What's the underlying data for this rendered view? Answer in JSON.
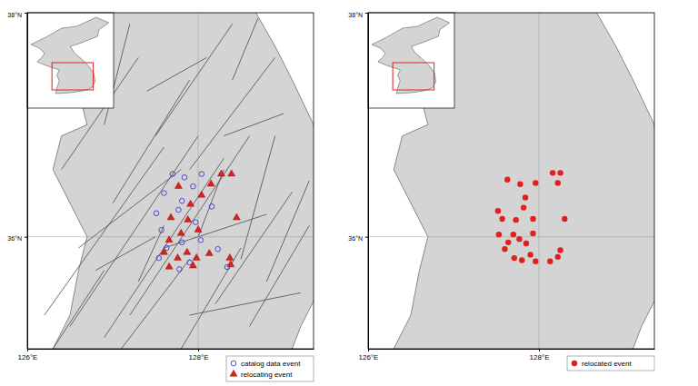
{
  "chart_data": [
    {
      "type": "map",
      "xlim": [
        126,
        129.35
      ],
      "ylim": [
        35,
        38
      ],
      "xticks": [
        {
          "value": 126,
          "label": "126°E"
        },
        {
          "value": 128,
          "label": "128°E"
        }
      ],
      "yticks": [
        {
          "value": 36,
          "label": "36°N"
        },
        {
          "value": 38,
          "label": "38°N"
        }
      ],
      "grid": true,
      "legend": "bottom-right",
      "series": [
        {
          "name": "catalog data event",
          "color": "#3a3ad6",
          "marker": "open-circle",
          "x": [
            127.7,
            127.84,
            128.04,
            127.6,
            127.81,
            128.16,
            127.51,
            127.77,
            127.97,
            127.57,
            127.81,
            127.63,
            128.03,
            127.54,
            127.78,
            127.9,
            128.23,
            128.34,
            127.94
          ],
          "values": [
            36.56,
            36.53,
            36.56,
            36.39,
            36.32,
            36.27,
            36.21,
            36.24,
            36.13,
            36.06,
            35.95,
            35.9,
            35.97,
            35.81,
            35.71,
            35.77,
            35.89,
            35.73,
            36.45
          ]
        },
        {
          "name": "relocating event",
          "color": "#e0201e",
          "marker": "triangle",
          "x": [
            128.27,
            128.39,
            128.15,
            127.77,
            128.04,
            127.91,
            127.68,
            127.88,
            128.45,
            128.0,
            127.8,
            127.66,
            127.6,
            127.87,
            127.66,
            127.94,
            127.98,
            128.13,
            128.37,
            128.38,
            127.76
          ],
          "values": [
            36.56,
            36.56,
            36.47,
            36.45,
            36.37,
            36.29,
            36.17,
            36.15,
            36.17,
            36.06,
            36.03,
            35.97,
            35.86,
            35.86,
            35.73,
            35.74,
            35.81,
            35.85,
            35.81,
            35.75,
            35.81
          ]
        }
      ],
      "coastline": {
        "lon": [
          125.9,
          128.6,
          128.9,
          129.1,
          129.35,
          129.4,
          129.45,
          129.55,
          129.4,
          129.2,
          129.1,
          128.5,
          127.5,
          126.5,
          126.2,
          126.3,
          126.5,
          126.6,
          126.7,
          126.5,
          126.3,
          126.4,
          126.7,
          126.6,
          126.5,
          125.9
        ],
        "lat": [
          38.1,
          38.1,
          37.7,
          37.4,
          37.0,
          36.6,
          36.1,
          35.9,
          35.5,
          35.2,
          35.0,
          34.9,
          34.8,
          34.5,
          34.6,
          35.0,
          35.3,
          35.7,
          36.0,
          36.3,
          36.6,
          36.9,
          37.0,
          37.3,
          37.6,
          37.7
        ]
      },
      "faults": [
        {
          "lon": [
            126.2,
            127.6
          ],
          "lat": [
            35.3,
            36.8
          ]
        },
        {
          "lon": [
            126.5,
            128.0
          ],
          "lat": [
            35.2,
            36.9
          ]
        },
        {
          "lon": [
            126.9,
            128.3
          ],
          "lat": [
            35.1,
            36.7
          ]
        },
        {
          "lon": [
            127.2,
            128.6
          ],
          "lat": [
            35.3,
            36.9
          ]
        },
        {
          "lon": [
            127.0,
            127.9
          ],
          "lat": [
            36.3,
            37.4
          ]
        },
        {
          "lon": [
            126.4,
            127.3
          ],
          "lat": [
            36.6,
            37.6
          ]
        },
        {
          "lon": [
            127.5,
            128.4
          ],
          "lat": [
            36.9,
            37.9
          ]
        },
        {
          "lon": [
            127.9,
            128.9
          ],
          "lat": [
            36.6,
            37.6
          ]
        },
        {
          "lon": [
            128.2,
            129.1
          ],
          "lat": [
            35.4,
            36.4
          ]
        },
        {
          "lon": [
            128.6,
            129.3
          ],
          "lat": [
            35.2,
            36.1
          ]
        },
        {
          "lon": [
            128.8,
            129.3
          ],
          "lat": [
            35.6,
            36.5
          ]
        },
        {
          "lon": [
            127.6,
            128.8
          ],
          "lat": [
            35.9,
            36.2
          ]
        },
        {
          "lon": [
            127.1,
            127.9
          ],
          "lat": [
            35.0,
            35.8
          ]
        },
        {
          "lon": [
            127.8,
            128.5
          ],
          "lat": [
            35.0,
            35.9
          ]
        },
        {
          "lon": [
            126.8,
            127.5
          ],
          "lat": [
            35.7,
            36.0
          ]
        },
        {
          "lon": [
            128.3,
            129.0
          ],
          "lat": [
            36.9,
            37.1
          ]
        },
        {
          "lon": [
            126.9,
            127.2
          ],
          "lat": [
            37.0,
            37.9
          ]
        },
        {
          "lon": [
            127.3,
            127.6
          ],
          "lat": [
            35.6,
            36.1
          ]
        },
        {
          "lon": [
            128.0,
            128.3
          ],
          "lat": [
            36.0,
            36.6
          ]
        },
        {
          "lon": [
            126.6,
            127.8
          ],
          "lat": [
            35.9,
            36.6
          ]
        },
        {
          "lon": [
            127.4,
            128.1
          ],
          "lat": [
            37.3,
            37.6
          ]
        },
        {
          "lon": [
            128.5,
            128.9
          ],
          "lat": [
            35.8,
            36.9
          ]
        },
        {
          "lon": [
            126.3,
            126.9
          ],
          "lat": [
            35.0,
            35.7
          ]
        },
        {
          "lon": [
            127.9,
            129.2
          ],
          "lat": [
            35.3,
            35.5
          ]
        },
        {
          "lon": [
            128.4,
            128.7
          ],
          "lat": [
            37.4,
            37.95
          ]
        }
      ],
      "inset": {
        "xlim": [
          124,
          131
        ],
        "ylim": [
          33,
          43.5
        ],
        "coastline": {
          "lon": [
            124.3,
            125.0,
            125.4,
            125.2,
            124.8,
            125.5,
            126.6,
            126.4,
            126.6,
            126.4,
            126.3,
            127.5,
            128.5,
            129.2,
            129.5,
            129.4,
            129.0,
            128.4,
            127.8,
            127.5,
            128.4,
            129.7,
            129.8,
            130.6,
            129.6,
            128.0,
            126.8,
            125.5
          ],
          "lat": [
            40.0,
            39.6,
            39.0,
            38.6,
            38.1,
            37.7,
            37.2,
            36.6,
            36.0,
            35.2,
            34.6,
            34.7,
            34.9,
            35.2,
            35.9,
            36.8,
            37.6,
            38.4,
            39.1,
            39.8,
            40.2,
            40.9,
            41.6,
            42.4,
            43.0,
            42.0,
            41.8,
            40.8
          ]
        }
      }
    },
    {
      "type": "map",
      "xlim": [
        126,
        129.35
      ],
      "ylim": [
        35,
        38
      ],
      "xticks": [
        {
          "value": 126,
          "label": "126°E"
        },
        {
          "value": 128,
          "label": "128°E"
        }
      ],
      "yticks": [
        {
          "value": 36,
          "label": "36°N"
        },
        {
          "value": 38,
          "label": "38°N"
        }
      ],
      "grid": true,
      "legend": "bottom-right",
      "series": [
        {
          "name": "relocated event",
          "color": "#e0201e",
          "marker": "circle",
          "x": [
            127.63,
            127.78,
            127.96,
            128.16,
            128.25,
            128.22,
            127.84,
            127.82,
            127.52,
            128.3,
            127.57,
            127.73,
            127.93,
            127.53,
            127.7,
            127.77,
            127.64,
            127.85,
            127.93,
            127.6,
            127.71,
            127.8,
            127.9,
            127.96,
            128.13,
            128.25,
            128.22
          ],
          "values": [
            36.51,
            36.47,
            36.48,
            36.57,
            36.57,
            36.48,
            36.35,
            36.26,
            36.23,
            36.16,
            36.16,
            36.15,
            36.16,
            36.02,
            36.02,
            35.98,
            35.95,
            35.94,
            36.03,
            35.89,
            35.81,
            35.79,
            35.84,
            35.78,
            35.78,
            35.88,
            35.82
          ]
        }
      ],
      "coastline": {
        "lon": [
          125.9,
          128.6,
          128.9,
          129.1,
          129.35,
          129.4,
          129.45,
          129.55,
          129.4,
          129.2,
          129.1,
          128.5,
          127.5,
          126.5,
          126.2,
          126.3,
          126.5,
          126.6,
          126.7,
          126.5,
          126.3,
          126.4,
          126.7,
          126.6,
          126.5,
          125.9
        ],
        "lat": [
          38.1,
          38.1,
          37.7,
          37.4,
          37.0,
          36.6,
          36.1,
          35.9,
          35.5,
          35.2,
          35.0,
          34.9,
          34.8,
          34.5,
          34.6,
          35.0,
          35.3,
          35.7,
          36.0,
          36.3,
          36.6,
          36.9,
          37.0,
          37.3,
          37.6,
          37.7
        ]
      },
      "inset": {
        "xlim": [
          124,
          131
        ],
        "ylim": [
          33,
          43.5
        ],
        "coastline": {
          "lon": [
            124.3,
            125.0,
            125.4,
            125.2,
            124.8,
            125.5,
            126.6,
            126.4,
            126.6,
            126.4,
            126.3,
            127.5,
            128.5,
            129.2,
            129.5,
            129.4,
            129.0,
            128.4,
            127.8,
            127.5,
            128.4,
            129.7,
            129.8,
            130.6,
            129.6,
            128.0,
            126.8,
            125.5
          ],
          "lat": [
            40.0,
            39.6,
            39.0,
            38.6,
            38.1,
            37.7,
            37.2,
            36.6,
            36.0,
            35.2,
            34.6,
            34.7,
            34.9,
            35.2,
            35.9,
            36.8,
            37.6,
            38.4,
            39.1,
            39.8,
            40.2,
            40.9,
            41.6,
            42.4,
            43.0,
            42.0,
            41.8,
            40.8
          ]
        }
      }
    }
  ]
}
